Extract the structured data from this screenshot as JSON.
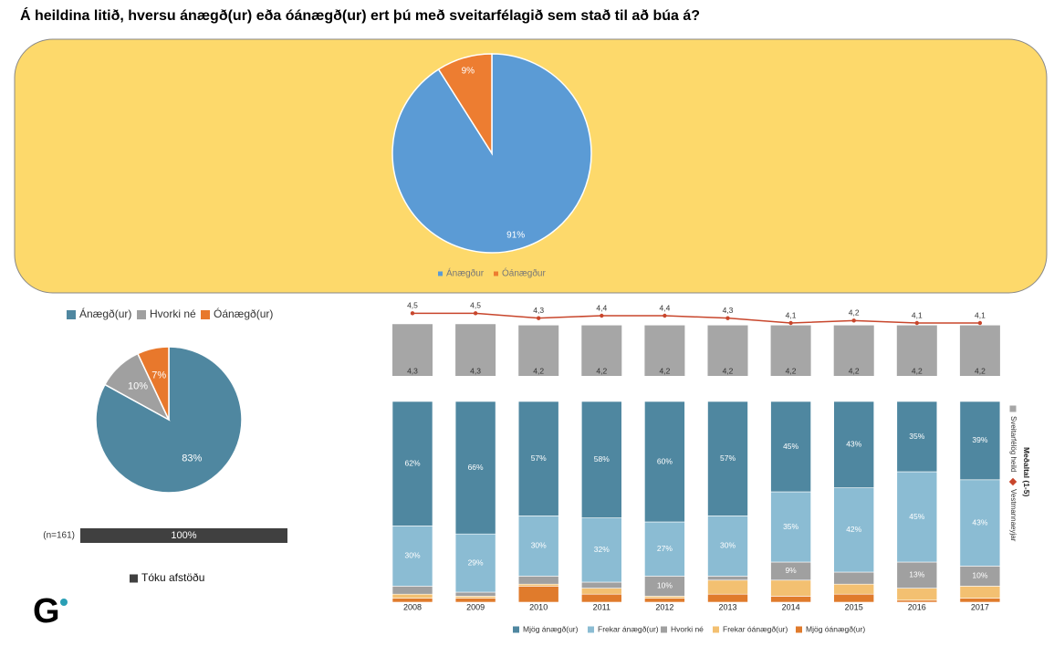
{
  "title": "Á heildina litið, hversu ánægð(ur) eða óánægð(ur) ert þú með sveitarfélagið sem stað til að búa á?",
  "logo": "G",
  "chart_data": [
    {
      "type": "pie",
      "categories": [
        "Ánægður",
        "Óánægður"
      ],
      "values": [
        91,
        9
      ],
      "value_labels": [
        "91%",
        "9%"
      ],
      "colors": [
        "#5b9bd5",
        "#ed7d31"
      ],
      "legend": "bottom"
    },
    {
      "type": "pie",
      "categories": [
        "Ánægð(ur)",
        "Hvorki né",
        "Óánægð(ur)"
      ],
      "values": [
        83,
        10,
        7
      ],
      "value_labels": [
        "83%",
        "10%",
        "7%"
      ],
      "colors": [
        "#4f87a0",
        "#a0a0a0",
        "#e8782c"
      ],
      "legend": "top"
    },
    {
      "type": "hbar",
      "categories": [
        "(n=161)"
      ],
      "xlim": [
        0,
        100
      ],
      "legend": "bottom",
      "series": [
        {
          "name": "Tóku afstöðu",
          "color": "#404040",
          "values": [
            100
          ],
          "value_labels": [
            "100%"
          ]
        }
      ]
    },
    {
      "type": "bar_line",
      "ylim": [
        0,
        5
      ],
      "y2lim": [
        3.5,
        5
      ],
      "legend": "right",
      "legend_title": "Meðaltal (1-5)",
      "series": [
        {
          "name": "Sveitarfélög heild",
          "color": "#a6a6a6",
          "values": [
            4.3,
            4.3,
            4.2,
            4.2,
            4.2,
            4.2,
            4.2,
            4.2,
            4.2,
            4.2
          ],
          "value_labels": [
            "4,3",
            "4,3",
            "4,2",
            "4,2",
            "4,2",
            "4,2",
            "4,2",
            "4,2",
            "4,2",
            "4,2"
          ]
        },
        {
          "name": "Vestmannaeyjar",
          "color": "#c8462c",
          "axis": "y2",
          "values": [
            4.5,
            4.5,
            4.3,
            4.4,
            4.4,
            4.3,
            4.1,
            4.2,
            4.1,
            4.1
          ],
          "value_labels": [
            "4,5",
            "4,5",
            "4,3",
            "4,4",
            "4,4",
            "4,3",
            "4,1",
            "4,2",
            "4,1",
            "4,1"
          ]
        }
      ]
    },
    {
      "type": "stacked_bar",
      "categories": [
        "2008",
        "2009",
        "2010",
        "2011",
        "2012",
        "2013",
        "2014",
        "2015",
        "2016",
        "2017"
      ],
      "ylim": [
        0,
        100
      ],
      "legend": "bottom",
      "series": [
        {
          "name": "Mjög ánægð(ur)",
          "color": "#4f87a0",
          "values": [
            62,
            66,
            57,
            58,
            60,
            57,
            45,
            43,
            35,
            39
          ],
          "value_labels": [
            "62%",
            "66%",
            "57%",
            "58%",
            "60%",
            "57%",
            "45%",
            "43%",
            "35%",
            "39%"
          ]
        },
        {
          "name": "Frekar ánægð(ur)",
          "color": "#8bbcd3",
          "values": [
            30,
            29,
            30,
            32,
            27,
            30,
            35,
            42,
            45,
            43
          ],
          "value_labels": [
            "30%",
            "29%",
            "30%",
            "32%",
            "27%",
            "30%",
            "35%",
            "42%",
            "45%",
            "43%"
          ]
        },
        {
          "name": "Hvorki né",
          "color": "#a0a0a0",
          "values": [
            4,
            2,
            4,
            3,
            10,
            2,
            9,
            6,
            13,
            10
          ],
          "value_labels": [
            null,
            null,
            null,
            null,
            "10%",
            null,
            "9%",
            null,
            "13%",
            "10%"
          ]
        },
        {
          "name": "Frekar óánægð(ur)",
          "color": "#f3c071",
          "values": [
            2,
            1,
            1,
            3,
            1,
            7,
            8,
            5,
            6,
            6
          ]
        },
        {
          "name": "Mjög óánægð(ur)",
          "color": "#e07b2c",
          "values": [
            2,
            2,
            8,
            4,
            2,
            4,
            3,
            4,
            1,
            2
          ]
        }
      ]
    }
  ]
}
